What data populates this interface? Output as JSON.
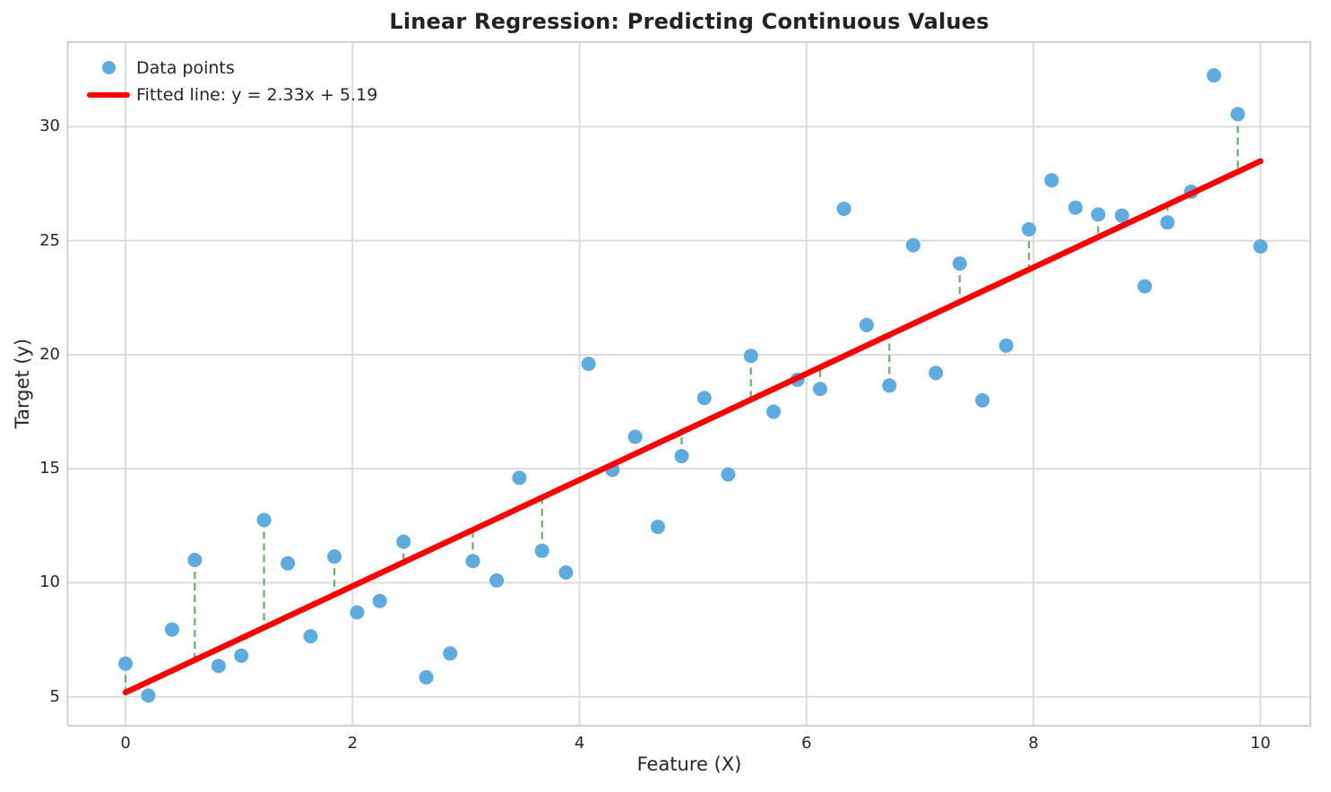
{
  "chart_data": {
    "type": "scatter",
    "title": "Linear Regression: Predicting Continuous Values",
    "xlabel": "Feature (X)",
    "ylabel": "Target (y)",
    "x_ticks": [
      0,
      2,
      4,
      6,
      8,
      10
    ],
    "y_ticks": [
      5,
      10,
      15,
      20,
      25,
      30
    ],
    "xlim": [
      -0.51,
      10.44
    ],
    "ylim": [
      3.73,
      33.71
    ],
    "grid": true,
    "legend": {
      "position": "upper left",
      "frame": false,
      "items": [
        {
          "label": "Data points",
          "marker": "circle",
          "color": "#5CACE2"
        },
        {
          "label": "Fitted line: y = 2.33x + 5.19",
          "marker": "line",
          "color": "#FF0000"
        }
      ]
    },
    "fit": {
      "slope": 2.33,
      "intercept": 5.19,
      "equation": "y = 2.33x + 5.19",
      "x_range": [
        0,
        10
      ],
      "color": "#FF0000"
    },
    "points": [
      [
        0.0,
        6.45
      ],
      [
        0.2,
        5.05
      ],
      [
        0.41,
        7.95
      ],
      [
        0.61,
        11.0
      ],
      [
        0.82,
        6.35
      ],
      [
        1.02,
        6.8
      ],
      [
        1.22,
        12.75
      ],
      [
        1.43,
        10.85
      ],
      [
        1.63,
        7.65
      ],
      [
        1.84,
        11.15
      ],
      [
        2.04,
        8.7
      ],
      [
        2.24,
        9.2
      ],
      [
        2.45,
        11.8
      ],
      [
        2.65,
        5.85
      ],
      [
        2.86,
        6.9
      ],
      [
        3.06,
        10.95
      ],
      [
        3.27,
        10.1
      ],
      [
        3.47,
        14.6
      ],
      [
        3.67,
        11.4
      ],
      [
        3.88,
        10.45
      ],
      [
        4.08,
        19.6
      ],
      [
        4.29,
        14.95
      ],
      [
        4.49,
        16.4
      ],
      [
        4.69,
        12.45
      ],
      [
        4.9,
        15.55
      ],
      [
        5.1,
        18.1
      ],
      [
        5.31,
        14.75
      ],
      [
        5.51,
        19.95
      ],
      [
        5.71,
        17.5
      ],
      [
        5.92,
        18.9
      ],
      [
        6.12,
        18.5
      ],
      [
        6.33,
        26.4
      ],
      [
        6.53,
        21.3
      ],
      [
        6.73,
        18.65
      ],
      [
        6.94,
        24.8
      ],
      [
        7.14,
        19.2
      ],
      [
        7.35,
        24.0
      ],
      [
        7.55,
        18.0
      ],
      [
        7.76,
        20.4
      ],
      [
        7.96,
        25.5
      ],
      [
        8.16,
        27.65
      ],
      [
        8.37,
        26.45
      ],
      [
        8.57,
        26.15
      ],
      [
        8.78,
        26.1
      ],
      [
        8.98,
        23.0
      ],
      [
        9.18,
        25.8
      ],
      [
        9.39,
        27.15
      ],
      [
        9.59,
        32.25
      ],
      [
        9.8,
        30.55
      ],
      [
        10.0,
        24.75
      ]
    ],
    "residuals": {
      "style": "dashed",
      "color": "#66B366",
      "indices": [
        0,
        3,
        6,
        9,
        12,
        15,
        18,
        21,
        24,
        27,
        30,
        33,
        36,
        39,
        42,
        45,
        48
      ]
    },
    "colors": {
      "point": "#5CACE2",
      "fit_line": "#FF0000",
      "residual": "#66B366",
      "grid": "#D9D9D9",
      "spine": "#CBCBCB",
      "text": "#262626",
      "background": "#FFFFFF"
    }
  }
}
